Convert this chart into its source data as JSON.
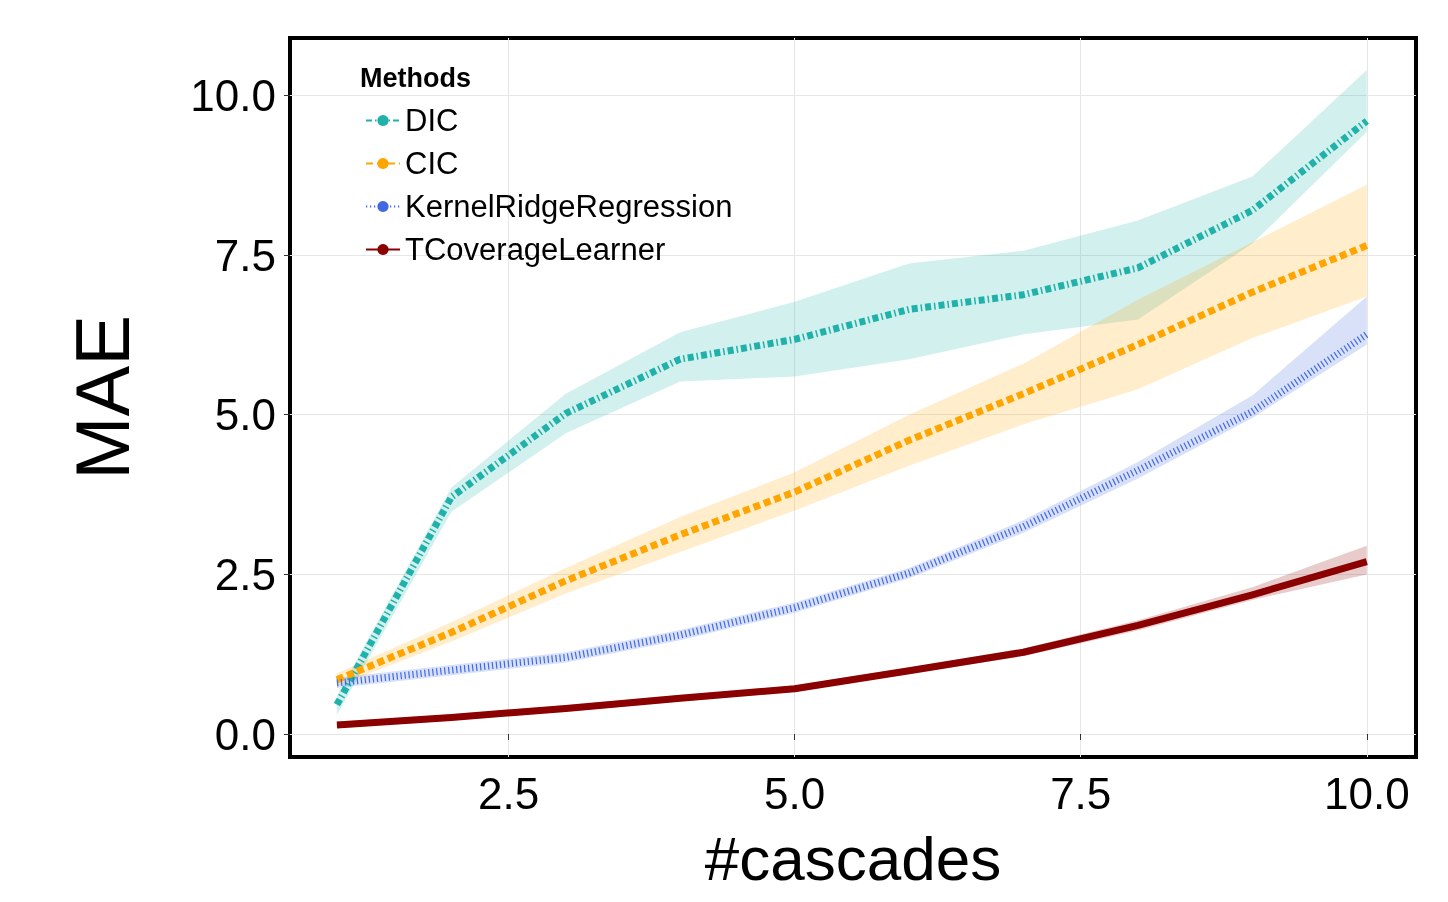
{
  "chart_data": {
    "type": "line",
    "xlabel": "#cascades",
    "ylabel": "MAE",
    "legend_title": "Methods",
    "legend": "top left",
    "grid": true,
    "marker": "none",
    "x": [
      1,
      2,
      3,
      4,
      5,
      6,
      7,
      8,
      9,
      10
    ],
    "xlim": [
      0.59,
      10.43
    ],
    "ylim": [
      -0.36,
      10.9
    ],
    "xticks": [
      {
        "value": 2.5,
        "label": "2.5"
      },
      {
        "value": 5,
        "label": "5.0"
      },
      {
        "value": 7.5,
        "label": "7.5"
      },
      {
        "value": 10,
        "label": "10.0"
      }
    ],
    "yticks": [
      {
        "value": 0,
        "label": "0.0"
      },
      {
        "value": 2.5,
        "label": "2.5"
      },
      {
        "value": 5,
        "label": "5.0"
      },
      {
        "value": 7.5,
        "label": "7.5"
      },
      {
        "value": 10,
        "label": "10.0"
      }
    ],
    "series": [
      {
        "name": "DIC",
        "color": "#20b2aa",
        "line_style": "dashdot",
        "values": [
          0.46,
          3.71,
          5.02,
          5.87,
          6.18,
          6.65,
          6.88,
          7.3,
          8.2,
          9.6
        ],
        "lower": [
          0.3,
          3.48,
          4.71,
          5.52,
          5.6,
          5.87,
          6.26,
          6.49,
          7.68,
          9.43
        ],
        "upper": [
          0.6,
          3.86,
          5.33,
          6.29,
          6.77,
          7.37,
          7.57,
          8.04,
          8.73,
          10.4
        ]
      },
      {
        "name": "CIC",
        "color": "#ffa500",
        "line_style": "dashed",
        "values": [
          0.85,
          1.59,
          2.4,
          3.12,
          3.79,
          4.6,
          5.33,
          6.1,
          6.92,
          7.65
        ],
        "lower": [
          0.75,
          1.45,
          2.2,
          2.85,
          3.5,
          4.2,
          4.85,
          5.4,
          6.2,
          6.85
        ],
        "upper": [
          0.95,
          1.75,
          2.6,
          3.4,
          4.1,
          5.0,
          5.8,
          6.8,
          7.7,
          8.6
        ]
      },
      {
        "name": "KernelRidgeRegression",
        "color": "#4169e1",
        "line_style": "dotted",
        "values": [
          0.8,
          1.0,
          1.2,
          1.55,
          1.98,
          2.52,
          3.25,
          4.13,
          5.05,
          6.26
        ],
        "lower": [
          0.72,
          0.92,
          1.12,
          1.47,
          1.9,
          2.44,
          3.15,
          4.0,
          4.95,
          6.1
        ],
        "upper": [
          0.88,
          1.08,
          1.28,
          1.63,
          2.06,
          2.6,
          3.35,
          4.26,
          5.3,
          6.85
        ]
      },
      {
        "name": "TCoverageLearner",
        "color": "#8b0000",
        "line_style": "solid",
        "values": [
          0.14,
          0.26,
          0.4,
          0.56,
          0.71,
          0.99,
          1.28,
          1.7,
          2.18,
          2.7
        ],
        "lower": [
          0.09,
          0.21,
          0.35,
          0.51,
          0.66,
          0.94,
          1.22,
          1.62,
          2.1,
          2.5
        ],
        "upper": [
          0.19,
          0.31,
          0.45,
          0.61,
          0.76,
          1.04,
          1.34,
          1.78,
          2.3,
          2.95
        ]
      }
    ]
  }
}
